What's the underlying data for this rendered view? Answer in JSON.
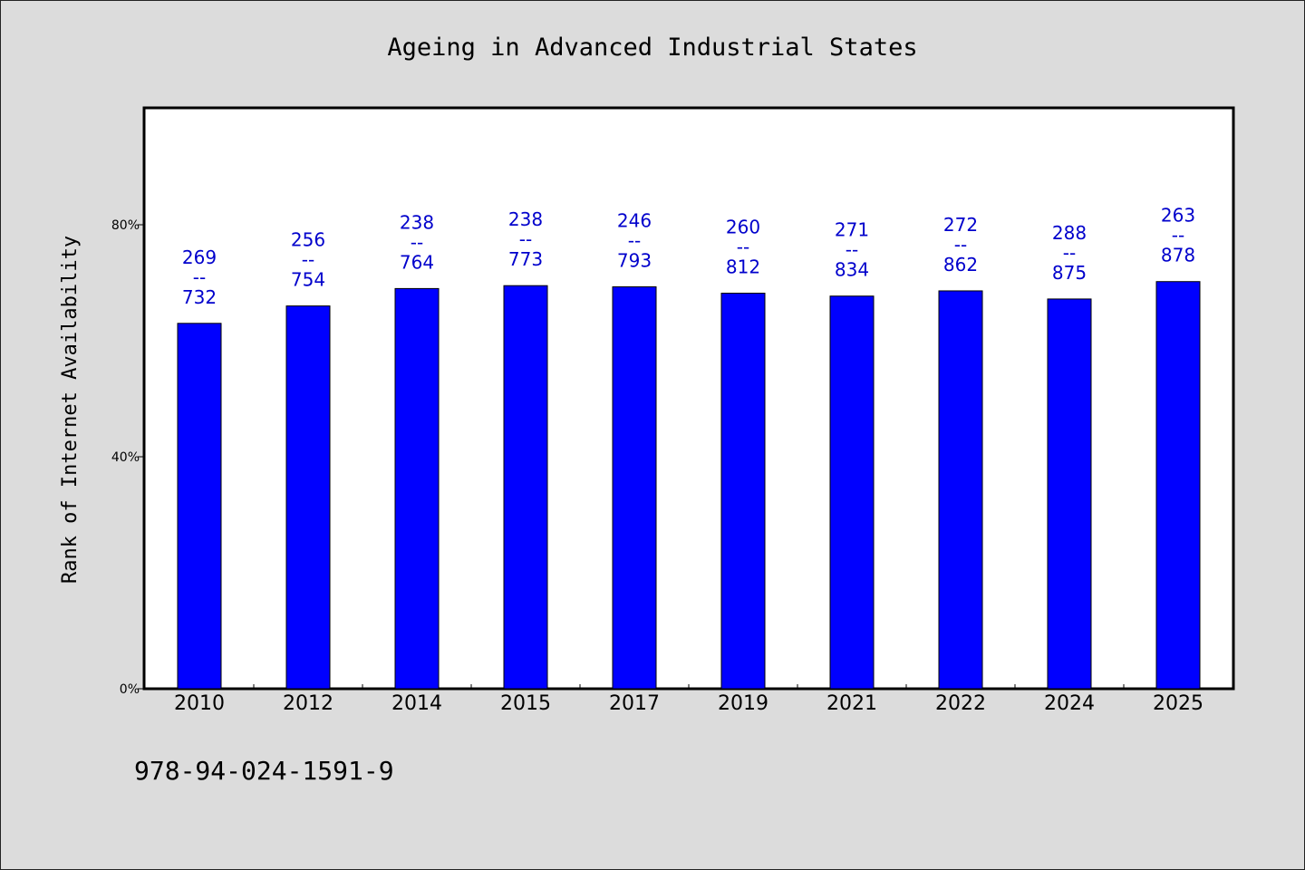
{
  "chart_data": {
    "type": "bar",
    "title": "Ageing in Advanced Industrial States",
    "ylabel": "Rank of Internet Availability",
    "xlabel": "",
    "categories": [
      "2010",
      "2012",
      "2014",
      "2015",
      "2017",
      "2019",
      "2021",
      "2022",
      "2024",
      "2025"
    ],
    "values": [
      63,
      66,
      69,
      69.5,
      69.3,
      68.2,
      67.7,
      68.6,
      67.2,
      70.2
    ],
    "value_unit": "%",
    "ylim": [
      0,
      100
    ],
    "yticks": [
      0,
      40,
      80
    ],
    "ytick_labels": [
      "0%",
      "40%",
      "80%"
    ],
    "data_labels": [
      {
        "top": "269",
        "sep": "--",
        "bottom": "732"
      },
      {
        "top": "256",
        "sep": "--",
        "bottom": "754"
      },
      {
        "top": "238",
        "sep": "--",
        "bottom": "764"
      },
      {
        "top": "238",
        "sep": "--",
        "bottom": "773"
      },
      {
        "top": "246",
        "sep": "--",
        "bottom": "793"
      },
      {
        "top": "260",
        "sep": "--",
        "bottom": "812"
      },
      {
        "top": "271",
        "sep": "--",
        "bottom": "834"
      },
      {
        "top": "272",
        "sep": "--",
        "bottom": "862"
      },
      {
        "top": "288",
        "sep": "--",
        "bottom": "875"
      },
      {
        "top": "263",
        "sep": "--",
        "bottom": "878"
      }
    ],
    "bar_color": "#0000ff",
    "label_color": "#0000cc",
    "grid": false,
    "legend": "none"
  },
  "footer": {
    "code": "978-94-024-1591-9"
  },
  "colors": {
    "background": "#dcdcdc",
    "plot_background": "#ffffff"
  }
}
